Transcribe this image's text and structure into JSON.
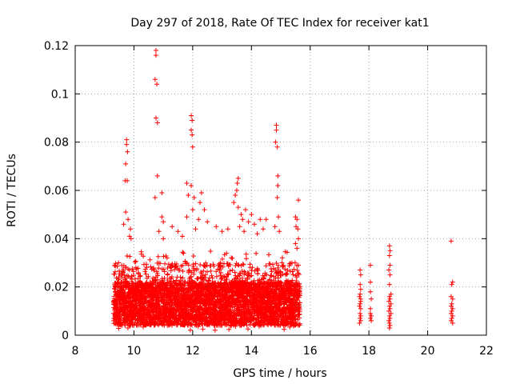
{
  "chart_data": {
    "type": "scatter",
    "title": "Day 297 of 2018, Rate Of TEC Index for receiver kat1",
    "xlabel": "GPS time / hours",
    "ylabel": "ROTI / TECUs",
    "xlim": [
      8,
      22
    ],
    "ylim": [
      0,
      0.12
    ],
    "xticks": [
      "8",
      "10",
      "12",
      "14",
      "16",
      "18",
      "20",
      "22"
    ],
    "yticks": [
      "0",
      "0.02",
      "0.04",
      "0.06",
      "0.08",
      "0.1",
      "0.12"
    ],
    "grid": true,
    "marker": "+",
    "color": "#ff0000",
    "dense_band": {
      "x_range": [
        9.3,
        15.65
      ],
      "y_range": [
        0.002,
        0.035
      ],
      "approx_points": 4200
    },
    "series": [
      {
        "name": "ROTI",
        "points": [
          [
            9.75,
            0.081
          ],
          [
            9.75,
            0.079
          ],
          [
            9.72,
            0.071
          ],
          [
            9.78,
            0.076
          ],
          [
            9.7,
            0.064
          ],
          [
            9.77,
            0.064
          ],
          [
            9.72,
            0.051
          ],
          [
            9.8,
            0.048
          ],
          [
            9.85,
            0.041
          ],
          [
            9.88,
            0.044
          ],
          [
            9.65,
            0.046
          ],
          [
            9.9,
            0.04
          ],
          [
            10.75,
            0.118
          ],
          [
            10.75,
            0.116
          ],
          [
            10.72,
            0.106
          ],
          [
            10.78,
            0.104
          ],
          [
            10.75,
            0.09
          ],
          [
            10.8,
            0.088
          ],
          [
            10.8,
            0.066
          ],
          [
            10.95,
            0.059
          ],
          [
            10.95,
            0.049
          ],
          [
            11.0,
            0.047
          ],
          [
            10.72,
            0.057
          ],
          [
            10.85,
            0.043
          ],
          [
            11.0,
            0.04
          ],
          [
            11.3,
            0.045
          ],
          [
            11.5,
            0.043
          ],
          [
            11.65,
            0.041
          ],
          [
            11.95,
            0.091
          ],
          [
            11.98,
            0.089
          ],
          [
            11.95,
            0.085
          ],
          [
            11.98,
            0.083
          ],
          [
            12.0,
            0.078
          ],
          [
            11.8,
            0.063
          ],
          [
            11.85,
            0.058
          ],
          [
            11.95,
            0.062
          ],
          [
            12.05,
            0.057
          ],
          [
            12.0,
            0.052
          ],
          [
            12.3,
            0.059
          ],
          [
            12.25,
            0.055
          ],
          [
            12.4,
            0.052
          ],
          [
            12.2,
            0.048
          ],
          [
            12.5,
            0.047
          ],
          [
            12.1,
            0.044
          ],
          [
            11.8,
            0.049
          ],
          [
            12.8,
            0.045
          ],
          [
            13.0,
            0.043
          ],
          [
            13.2,
            0.044
          ],
          [
            13.55,
            0.065
          ],
          [
            13.52,
            0.063
          ],
          [
            13.5,
            0.06
          ],
          [
            13.45,
            0.058
          ],
          [
            13.4,
            0.055
          ],
          [
            13.55,
            0.053
          ],
          [
            13.65,
            0.05
          ],
          [
            13.7,
            0.048
          ],
          [
            13.8,
            0.052
          ],
          [
            13.9,
            0.047
          ],
          [
            14.0,
            0.05
          ],
          [
            14.1,
            0.046
          ],
          [
            14.2,
            0.042
          ],
          [
            14.3,
            0.048
          ],
          [
            14.4,
            0.044
          ],
          [
            14.5,
            0.048
          ],
          [
            13.6,
            0.045
          ],
          [
            13.75,
            0.043
          ],
          [
            14.85,
            0.087
          ],
          [
            14.85,
            0.085
          ],
          [
            14.82,
            0.08
          ],
          [
            14.88,
            0.078
          ],
          [
            14.9,
            0.066
          ],
          [
            14.9,
            0.062
          ],
          [
            14.88,
            0.057
          ],
          [
            14.92,
            0.049
          ],
          [
            14.8,
            0.045
          ],
          [
            14.95,
            0.043
          ],
          [
            15.5,
            0.049
          ],
          [
            15.55,
            0.048
          ],
          [
            15.6,
            0.056
          ],
          [
            15.52,
            0.045
          ],
          [
            15.58,
            0.044
          ],
          [
            15.6,
            0.04
          ],
          [
            15.5,
            0.038
          ],
          [
            15.55,
            0.036
          ],
          [
            17.7,
            0.027
          ],
          [
            17.72,
            0.025
          ],
          [
            17.7,
            0.021
          ],
          [
            17.72,
            0.019
          ],
          [
            17.7,
            0.017
          ],
          [
            17.68,
            0.016
          ],
          [
            17.72,
            0.015
          ],
          [
            17.7,
            0.013
          ],
          [
            17.68,
            0.012
          ],
          [
            17.72,
            0.011
          ],
          [
            17.7,
            0.009
          ],
          [
            17.72,
            0.008
          ],
          [
            17.7,
            0.007
          ],
          [
            17.72,
            0.006
          ],
          [
            17.68,
            0.005
          ],
          [
            17.72,
            0.014
          ],
          [
            18.05,
            0.029
          ],
          [
            18.05,
            0.022
          ],
          [
            18.05,
            0.018
          ],
          [
            18.08,
            0.015
          ],
          [
            18.05,
            0.011
          ],
          [
            18.05,
            0.009
          ],
          [
            18.08,
            0.008
          ],
          [
            18.05,
            0.007
          ],
          [
            18.08,
            0.006
          ],
          [
            18.7,
            0.037
          ],
          [
            18.72,
            0.035
          ],
          [
            18.7,
            0.033
          ],
          [
            18.72,
            0.029
          ],
          [
            18.68,
            0.027
          ],
          [
            18.72,
            0.025
          ],
          [
            18.7,
            0.021
          ],
          [
            18.75,
            0.017
          ],
          [
            18.7,
            0.016
          ],
          [
            18.72,
            0.015
          ],
          [
            18.68,
            0.014
          ],
          [
            18.75,
            0.013
          ],
          [
            18.7,
            0.012
          ],
          [
            18.72,
            0.011
          ],
          [
            18.68,
            0.01
          ],
          [
            18.75,
            0.009
          ],
          [
            18.7,
            0.008
          ],
          [
            18.72,
            0.007
          ],
          [
            18.68,
            0.006
          ],
          [
            18.7,
            0.005
          ],
          [
            18.72,
            0.004
          ],
          [
            18.7,
            0.003
          ],
          [
            20.8,
            0.039
          ],
          [
            20.85,
            0.022
          ],
          [
            20.82,
            0.021
          ],
          [
            20.8,
            0.016
          ],
          [
            20.85,
            0.015
          ],
          [
            20.82,
            0.013
          ],
          [
            20.8,
            0.012
          ],
          [
            20.85,
            0.011
          ],
          [
            20.82,
            0.01
          ],
          [
            20.8,
            0.009
          ],
          [
            20.85,
            0.008
          ],
          [
            20.82,
            0.007
          ],
          [
            20.8,
            0.006
          ],
          [
            20.85,
            0.005
          ]
        ]
      }
    ]
  }
}
